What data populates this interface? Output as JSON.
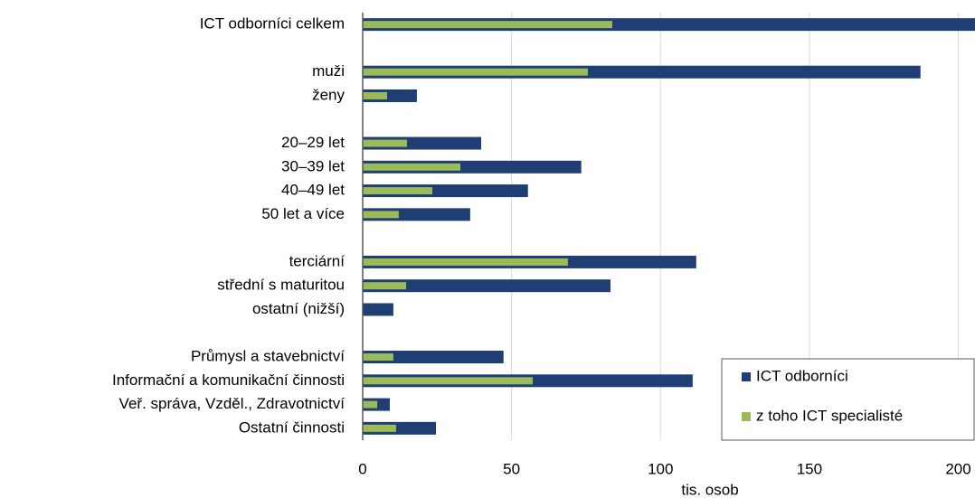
{
  "chart_data": {
    "type": "bar",
    "orientation": "horizontal",
    "x_label": "tis. osob",
    "categories": [
      "ICT odborníci celkem",
      null,
      "muži",
      "ženy",
      null,
      "20–29 let",
      "30–39 let",
      "40–49 let",
      "50 let a více",
      null,
      "terciární",
      "střední s maturitou",
      "ostatní (nižší)",
      null,
      "Průmysl a stavebnictví",
      "Informační a komunikační činnosti",
      "Veř. správa, Vzděl., Zdravotnictví",
      "Ostatní činnosti"
    ],
    "series": [
      {
        "name": "ICT odborníci",
        "color": "#1f3e74",
        "values": [
          210,
          null,
          187.3,
          18.2,
          null,
          39.8,
          73.4,
          55.5,
          36.1,
          null,
          112,
          83.2,
          10.3,
          null,
          47.3,
          110.8,
          9.1,
          24.6
        ]
      },
      {
        "name": "z toho ICT specialisté",
        "color": "#9bbb59",
        "values": [
          83.8,
          null,
          75.6,
          8.2,
          null,
          14.9,
          32.8,
          23.4,
          12.1,
          null,
          68.9,
          14.6,
          null,
          null,
          10.3,
          57.1,
          4.9,
          11.2
        ]
      }
    ],
    "xlim": [
      0,
      205
    ],
    "xticks": [
      0,
      50,
      100,
      150,
      200
    ],
    "grid": true,
    "legend": "lower right"
  }
}
